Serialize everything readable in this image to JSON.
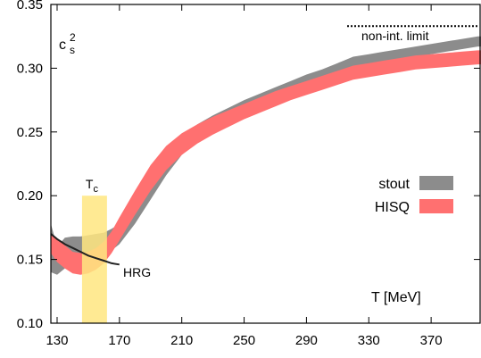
{
  "chart_data": {
    "type": "area",
    "title": "",
    "xlabel": "T [MeV]",
    "ylabel_main": "c",
    "ylabel_sup": "2",
    "ylabel_sub": "s",
    "xlim": [
      126,
      402
    ],
    "ylim": [
      0.1,
      0.35
    ],
    "xticks": [
      130,
      170,
      210,
      250,
      290,
      330,
      370
    ],
    "yticks": [
      0.1,
      0.15,
      0.2,
      0.25,
      0.3,
      0.35
    ],
    "ytick_labels": [
      "0.10",
      "0.15",
      "0.20",
      "0.25",
      "0.30",
      "0.35"
    ],
    "grid": false,
    "legend_position": "right",
    "series": [
      {
        "name": "stout",
        "kind": "band",
        "color": "#8c8c8c",
        "x": [
          126,
          130,
          135,
          140,
          145,
          150,
          155,
          160,
          165,
          170,
          180,
          190,
          200,
          210,
          220,
          230,
          240,
          250,
          260,
          270,
          280,
          290,
          300,
          310,
          320,
          330,
          340,
          350,
          360,
          370,
          380,
          390,
          400,
          402
        ],
        "lower": [
          0.14,
          0.138,
          0.143,
          0.147,
          0.15,
          0.152,
          0.153,
          0.155,
          0.157,
          0.162,
          0.178,
          0.197,
          0.216,
          0.232,
          0.243,
          0.252,
          0.259,
          0.265,
          0.271,
          0.277,
          0.282,
          0.287,
          0.291,
          0.296,
          0.3,
          0.302,
          0.305,
          0.307,
          0.309,
          0.311,
          0.313,
          0.315,
          0.317,
          0.317
        ],
        "upper": [
          0.178,
          0.16,
          0.167,
          0.168,
          0.168,
          0.169,
          0.17,
          0.171,
          0.174,
          0.178,
          0.194,
          0.213,
          0.232,
          0.246,
          0.256,
          0.263,
          0.269,
          0.275,
          0.28,
          0.285,
          0.29,
          0.295,
          0.299,
          0.304,
          0.309,
          0.311,
          0.313,
          0.315,
          0.317,
          0.319,
          0.321,
          0.323,
          0.325,
          0.325
        ]
      },
      {
        "name": "HISQ",
        "kind": "band",
        "color": "#ff7070",
        "x": [
          126,
          130,
          135,
          140,
          145,
          150,
          155,
          160,
          165,
          170,
          180,
          190,
          200,
          210,
          220,
          230,
          240,
          250,
          260,
          270,
          280,
          290,
          300,
          310,
          320,
          330,
          340,
          350,
          360,
          370,
          380,
          390,
          400,
          402
        ],
        "lower": [
          0.155,
          0.148,
          0.143,
          0.139,
          0.138,
          0.139,
          0.142,
          0.147,
          0.155,
          0.165,
          0.185,
          0.204,
          0.22,
          0.232,
          0.241,
          0.248,
          0.254,
          0.26,
          0.265,
          0.27,
          0.275,
          0.279,
          0.283,
          0.287,
          0.291,
          0.293,
          0.295,
          0.297,
          0.299,
          0.3,
          0.301,
          0.302,
          0.303,
          0.303
        ],
        "upper": [
          0.17,
          0.166,
          0.161,
          0.156,
          0.155,
          0.156,
          0.159,
          0.164,
          0.172,
          0.183,
          0.204,
          0.224,
          0.239,
          0.249,
          0.256,
          0.262,
          0.267,
          0.272,
          0.277,
          0.282,
          0.286,
          0.29,
          0.294,
          0.298,
          0.302,
          0.304,
          0.306,
          0.308,
          0.31,
          0.311,
          0.312,
          0.313,
          0.314,
          0.314
        ]
      },
      {
        "name": "HRG",
        "kind": "line",
        "color": "#222222",
        "x": [
          126,
          130,
          135,
          140,
          145,
          150,
          155,
          160,
          165,
          170
        ],
        "y": [
          0.17,
          0.166,
          0.162,
          0.159,
          0.156,
          0.153,
          0.151,
          0.149,
          0.147,
          0.146
        ]
      }
    ],
    "annotations": {
      "tc": {
        "label_main": "T",
        "label_sub": "c",
        "x_range": [
          146,
          162
        ],
        "y_range": [
          0.1,
          0.2
        ],
        "color": "#ffe680"
      },
      "non_int": {
        "label": "non-int. limit",
        "y": 0.333,
        "x_range": [
          330,
          402
        ]
      },
      "hrg_label": "HRG"
    },
    "legend": [
      {
        "label": "stout",
        "color": "#8c8c8c"
      },
      {
        "label": "HISQ",
        "color": "#ff7070"
      }
    ]
  }
}
